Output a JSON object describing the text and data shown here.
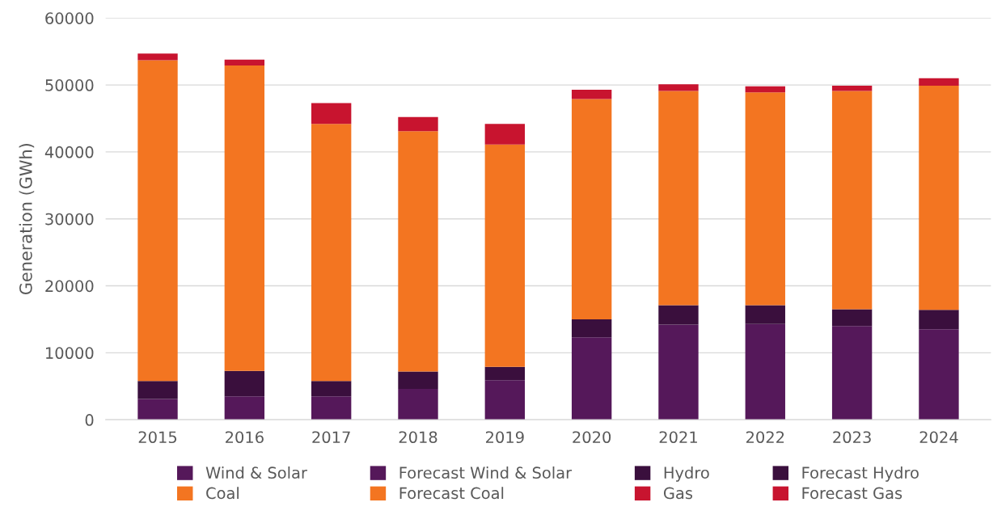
{
  "chart_data": {
    "type": "bar",
    "stacked": true,
    "ylabel": "Generation (GWh)",
    "categories": [
      "2015",
      "2016",
      "2017",
      "2018",
      "2019",
      "2020",
      "2021",
      "2022",
      "2023",
      "2024"
    ],
    "series": [
      {
        "name": "Wind & Solar",
        "color": "#55185a",
        "values": [
          3100,
          3500,
          3500,
          4600,
          5900,
          null,
          null,
          null,
          null,
          null
        ]
      },
      {
        "name": "Forecast Wind & Solar",
        "color": "#55185a",
        "values": [
          null,
          null,
          null,
          null,
          null,
          12300,
          14200,
          14300,
          14000,
          13500
        ]
      },
      {
        "name": "Hydro",
        "color": "#3a0f3d",
        "values": [
          2700,
          3800,
          2300,
          2600,
          2000,
          null,
          null,
          null,
          null,
          null
        ]
      },
      {
        "name": "Forecast Hydro",
        "color": "#3a0f3d",
        "values": [
          null,
          null,
          null,
          null,
          null,
          2700,
          2900,
          2800,
          2500,
          2900
        ]
      },
      {
        "name": "Coal",
        "color": "#f37521",
        "values": [
          47900,
          45600,
          38400,
          35900,
          33200,
          null,
          null,
          null,
          null,
          null
        ]
      },
      {
        "name": "Forecast Coal",
        "color": "#f37521",
        "values": [
          null,
          null,
          null,
          null,
          null,
          32900,
          32000,
          31800,
          32600,
          33500
        ]
      },
      {
        "name": "Gas",
        "color": "#c8142f",
        "values": [
          1000,
          900,
          3100,
          2100,
          3100,
          null,
          null,
          null,
          null,
          null
        ]
      },
      {
        "name": "Forecast Gas",
        "color": "#c8142f",
        "values": [
          null,
          null,
          null,
          null,
          null,
          1400,
          1000,
          900,
          800,
          1100
        ]
      }
    ],
    "ylim": [
      0,
      60000
    ],
    "yticks": [
      0,
      10000,
      20000,
      30000,
      40000,
      50000,
      60000
    ],
    "grid": "y",
    "legend": "bottom"
  }
}
